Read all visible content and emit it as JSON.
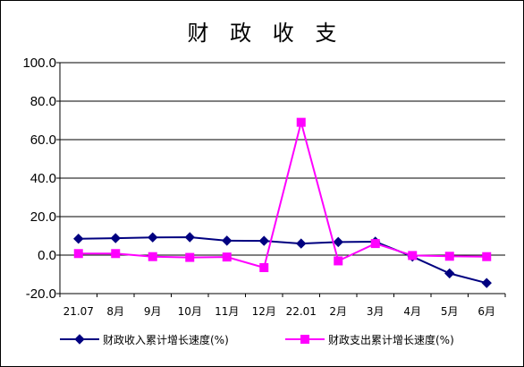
{
  "chart_data": {
    "type": "line",
    "title": "财 政 收 支",
    "xlabel": "",
    "ylabel": "",
    "categories": [
      "21.07",
      "8月",
      "9月",
      "10月",
      "11月",
      "12月",
      "22.01",
      "2月",
      "3月",
      "4月",
      "5月",
      "6月"
    ],
    "ylim": [
      -20,
      100
    ],
    "yticks": [
      "100.0",
      "80.0",
      "60.0",
      "40.0",
      "20.0",
      "0.0",
      "-20.0"
    ],
    "grid": true,
    "legend_position": "bottom",
    "series": [
      {
        "name": "财政收入累计增长速度(%)",
        "color": "#000080",
        "marker": "diamond",
        "values": [
          8.5,
          8.8,
          9.2,
          9.3,
          7.5,
          7.4,
          6.0,
          6.8,
          7.0,
          -0.8,
          -9.5,
          -14.5
        ]
      },
      {
        "name": "财政支出累计增长速度(%)",
        "color": "#ff00ff",
        "marker": "square",
        "values": [
          0.8,
          0.8,
          -0.8,
          -1.2,
          -1.0,
          -6.5,
          69.0,
          -3.0,
          6.0,
          -0.2,
          -0.6,
          -0.8
        ]
      }
    ]
  }
}
